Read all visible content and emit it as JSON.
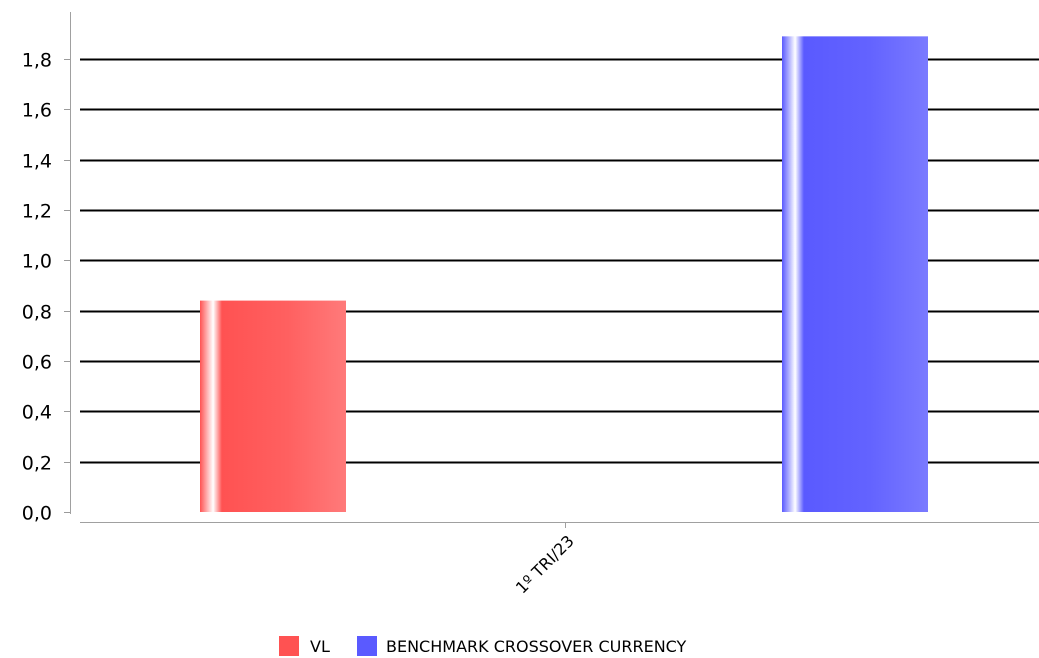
{
  "chart_data": {
    "type": "bar",
    "categories": [
      "1º TRI/23"
    ],
    "series": [
      {
        "name": "VL",
        "values": [
          0.84
        ],
        "color": "#ff5252"
      },
      {
        "name": "BENCHMARK CROSSOVER CURRENCY",
        "values": [
          1.89
        ],
        "color": "#5a5aff"
      }
    ],
    "yticks": [
      "0,0",
      "0,2",
      "0,4",
      "0,6",
      "0,8",
      "1,0",
      "1,2",
      "1,4",
      "1,6",
      "1,8"
    ],
    "ylim": [
      0,
      1.8
    ],
    "grid": true,
    "legend_position": "bottom-center"
  }
}
